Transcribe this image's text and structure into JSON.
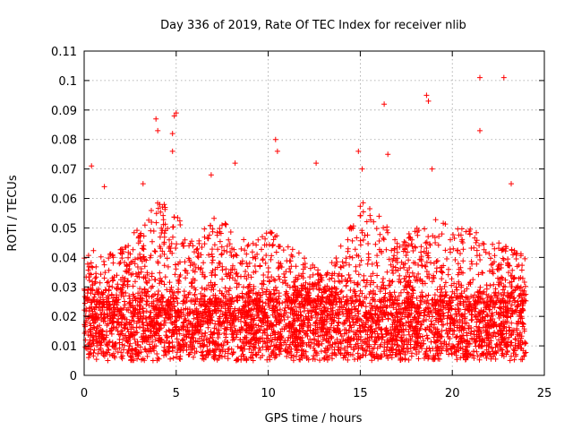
{
  "chart_data": {
    "type": "scatter",
    "title": "Day 336 of 2019, Rate Of TEC Index for receiver nlib",
    "xlabel": "GPS time / hours",
    "ylabel": "ROTI / TECUs",
    "xlim": [
      0,
      25
    ],
    "ylim": [
      0,
      0.11
    ],
    "x_ticks": [
      "0",
      "5",
      "10",
      "15",
      "20",
      "25"
    ],
    "y_ticks": [
      "0",
      "0.01",
      "0.02",
      "0.03",
      "0.04",
      "0.05",
      "0.06",
      "0.07",
      "0.08",
      "0.09",
      "0.1",
      "0.11"
    ],
    "grid": true,
    "marker": "plus",
    "series": [
      {
        "color": "#ff0000",
        "x_range": [
          0,
          24
        ],
        "baseline_range": [
          0.005,
          0.025
        ],
        "typical_upper_envelope": [
          [
            0,
            0.045
          ],
          [
            1,
            0.04
          ],
          [
            2,
            0.045
          ],
          [
            3,
            0.05
          ],
          [
            4,
            0.06
          ],
          [
            5,
            0.055
          ],
          [
            6,
            0.045
          ],
          [
            7,
            0.055
          ],
          [
            8,
            0.05
          ],
          [
            9,
            0.045
          ],
          [
            10,
            0.05
          ],
          [
            11,
            0.045
          ],
          [
            12,
            0.04
          ],
          [
            13,
            0.035
          ],
          [
            14,
            0.045
          ],
          [
            15,
            0.06
          ],
          [
            16,
            0.055
          ],
          [
            17,
            0.045
          ],
          [
            18,
            0.05
          ],
          [
            19,
            0.055
          ],
          [
            20,
            0.05
          ],
          [
            21,
            0.05
          ],
          [
            22,
            0.045
          ],
          [
            23,
            0.045
          ],
          [
            24,
            0.04
          ]
        ],
        "notable_points": [
          [
            0.4,
            0.071
          ],
          [
            1.1,
            0.064
          ],
          [
            3.2,
            0.065
          ],
          [
            3.9,
            0.087
          ],
          [
            4.0,
            0.083
          ],
          [
            4.9,
            0.088
          ],
          [
            5.0,
            0.089
          ],
          [
            4.8,
            0.082
          ],
          [
            4.8,
            0.076
          ],
          [
            6.9,
            0.068
          ],
          [
            8.2,
            0.072
          ],
          [
            10.4,
            0.08
          ],
          [
            10.5,
            0.076
          ],
          [
            12.6,
            0.072
          ],
          [
            14.9,
            0.076
          ],
          [
            15.1,
            0.07
          ],
          [
            16.3,
            0.092
          ],
          [
            16.5,
            0.075
          ],
          [
            18.6,
            0.095
          ],
          [
            18.7,
            0.093
          ],
          [
            18.9,
            0.07
          ],
          [
            21.5,
            0.101
          ],
          [
            21.5,
            0.083
          ],
          [
            22.8,
            0.101
          ],
          [
            23.2,
            0.065
          ]
        ]
      }
    ]
  }
}
